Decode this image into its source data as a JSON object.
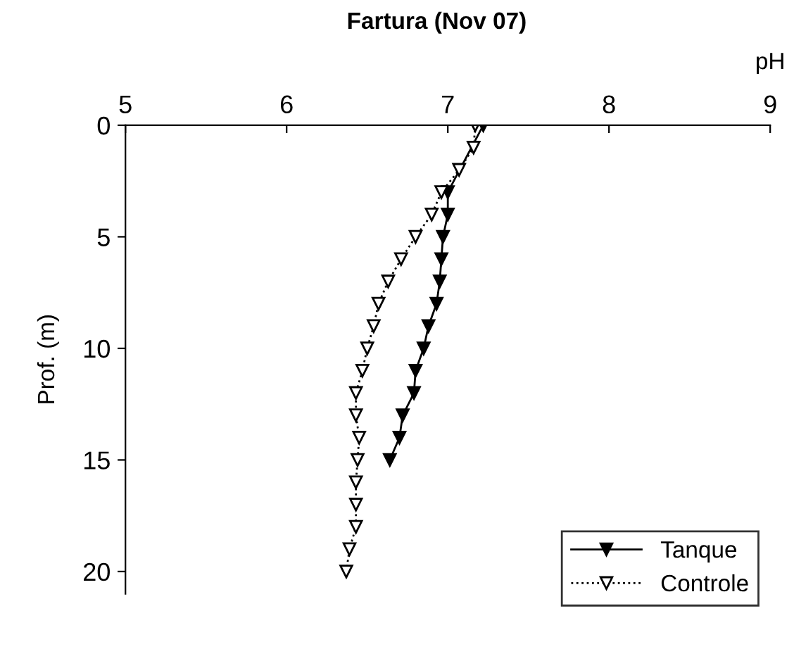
{
  "chart_data": {
    "type": "line",
    "title": "Fartura (Nov 07)",
    "xlabel": "pH",
    "ylabel": "Prof. (m)",
    "xlim": [
      5,
      9
    ],
    "xticks": [
      5,
      6,
      7,
      8,
      9
    ],
    "ylim": [
      21,
      0
    ],
    "yticks": [
      0,
      5,
      10,
      15,
      20
    ],
    "grid": false,
    "legend": "bottom right",
    "marker": "triangle",
    "series": [
      {
        "name": "Tanque",
        "color": "#000000",
        "line_style": "solid",
        "x": [
          7.22,
          7.0,
          7.0,
          6.97,
          6.96,
          6.95,
          6.93,
          6.88,
          6.85,
          6.8,
          6.79,
          6.72,
          6.7,
          6.64
        ],
        "values": [
          0,
          3,
          4,
          5,
          6,
          7,
          8,
          9,
          10,
          11,
          12,
          13,
          14,
          15
        ]
      },
      {
        "name": "Controle",
        "color": "#000000",
        "line_style": "dotted",
        "x": [
          7.17,
          7.16,
          7.07,
          6.96,
          6.9,
          6.8,
          6.71,
          6.63,
          6.57,
          6.54,
          6.5,
          6.47,
          6.43,
          6.43,
          6.45,
          6.44,
          6.43,
          6.43,
          6.43,
          6.39,
          6.37
        ],
        "values": [
          0,
          1,
          2,
          3,
          4,
          5,
          6,
          7,
          8,
          9,
          10,
          11,
          12,
          13,
          14,
          15,
          16,
          17,
          18,
          19,
          20
        ]
      }
    ]
  }
}
